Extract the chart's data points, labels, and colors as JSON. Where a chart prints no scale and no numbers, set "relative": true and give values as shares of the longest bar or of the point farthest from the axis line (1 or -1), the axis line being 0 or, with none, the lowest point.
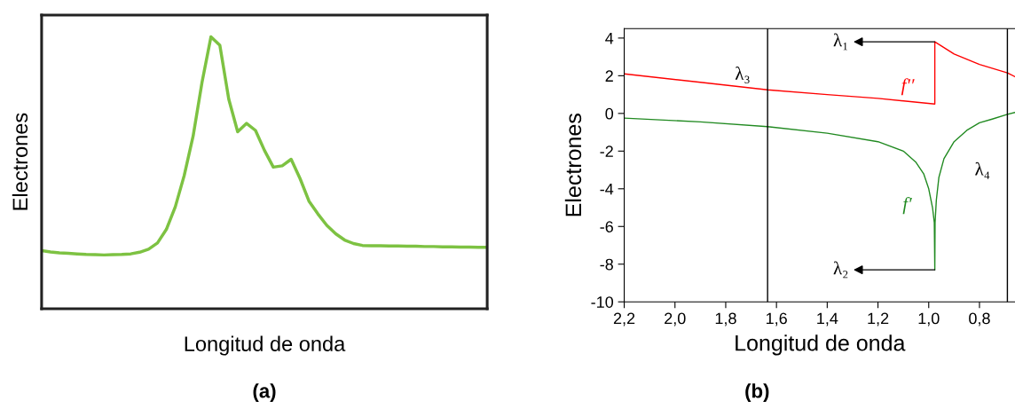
{
  "chart_data": [
    {
      "type": "line",
      "title": "(a)",
      "xlabel": "Longitud de onda",
      "ylabel": "Electrones",
      "relative": true,
      "grid": false,
      "categories": [
        null,
        null,
        null,
        null,
        null,
        null,
        null,
        null,
        null,
        null,
        null,
        null,
        null,
        null,
        null,
        null,
        null,
        null,
        null,
        null,
        null,
        null,
        null,
        null,
        null,
        null,
        null,
        null,
        null,
        null,
        null,
        null,
        null,
        null,
        null,
        null,
        null,
        null,
        null,
        null,
        null,
        null,
        null,
        null,
        null,
        null,
        null,
        null,
        null,
        null,
        null
      ],
      "series": [
        {
          "color": "#7dc242",
          "values": [
            0.214,
            0.209,
            0.206,
            0.204,
            0.202,
            0.2,
            0.199,
            0.198,
            0.199,
            0.2,
            0.202,
            0.208,
            0.219,
            0.242,
            0.292,
            0.375,
            0.49,
            0.635,
            0.833,
            1,
            0.969,
            0.771,
            0.651,
            0.682,
            0.656,
            0.583,
            0.521,
            0.526,
            0.55,
            0.479,
            0.396,
            0.349,
            0.307,
            0.276,
            0.253,
            0.24,
            0.233,
            0.232,
            0.232,
            0.231,
            0.231,
            0.23,
            0.23,
            0.229,
            0.229,
            0.228,
            0.228,
            0.227,
            0.227,
            0.226,
            0.226
          ]
        }
      ]
    },
    {
      "type": "line",
      "title": "(b)",
      "xlabel": "Longitud de onda",
      "ylabel": "Electrones",
      "grid": false,
      "xlim": [
        2.2,
        0.66
      ],
      "ylim": [
        -10,
        4.5
      ],
      "xticks": [
        {
          "value": 2.2,
          "label": "2,2"
        },
        {
          "value": 2.0,
          "label": "2,0"
        },
        {
          "value": 1.8,
          "label": "1,8"
        },
        {
          "value": 1.6,
          "label": "1,6"
        },
        {
          "value": 1.4,
          "label": "1,4"
        },
        {
          "value": 1.2,
          "label": "1,2"
        },
        {
          "value": 1.0,
          "label": "1,0"
        },
        {
          "value": 0.8,
          "label": "0,8"
        }
      ],
      "yticks": [
        -10,
        -8,
        -6,
        -4,
        -2,
        0,
        2,
        4
      ],
      "series": [
        {
          "name": "f′′",
          "color": "#ff0000",
          "x": [
            2.2,
            1.9,
            1.635,
            1.4,
            1.2,
            0.976,
            0.976,
            0.9,
            0.8,
            0.69,
            0.66
          ],
          "values": [
            2.1,
            1.65,
            1.25,
            1.0,
            0.8,
            0.5,
            3.8,
            3.15,
            2.6,
            2.15,
            1.95
          ]
        },
        {
          "name": "f′",
          "color": "#218a21",
          "x": [
            2.2,
            1.9,
            1.635,
            1.4,
            1.2,
            1.1,
            1.05,
            1.02,
            1.0,
            0.985,
            0.978,
            0.976,
            0.975,
            0.97,
            0.96,
            0.94,
            0.9,
            0.85,
            0.8,
            0.75,
            0.69,
            0.66
          ],
          "values": [
            -0.25,
            -0.45,
            -0.7,
            -1.05,
            -1.5,
            -2.0,
            -2.6,
            -3.2,
            -4.0,
            -5.0,
            -5.8,
            -8.3,
            -5.8,
            -4.6,
            -3.4,
            -2.4,
            -1.5,
            -0.9,
            -0.5,
            -0.3,
            -0.05,
            0.05
          ]
        }
      ],
      "ref_lines": [
        {
          "axis": "x",
          "value": 1.635,
          "label": "λ₃",
          "color": "#000000"
        },
        {
          "axis": "x",
          "value": 0.69,
          "label": "λ₄",
          "color": "#000000"
        }
      ],
      "annotations": [
        {
          "text": "λ₁",
          "x": 0.976,
          "y": 3.8
        },
        {
          "text": "λ₂",
          "x": 0.976,
          "y": -8.3
        }
      ]
    }
  ]
}
